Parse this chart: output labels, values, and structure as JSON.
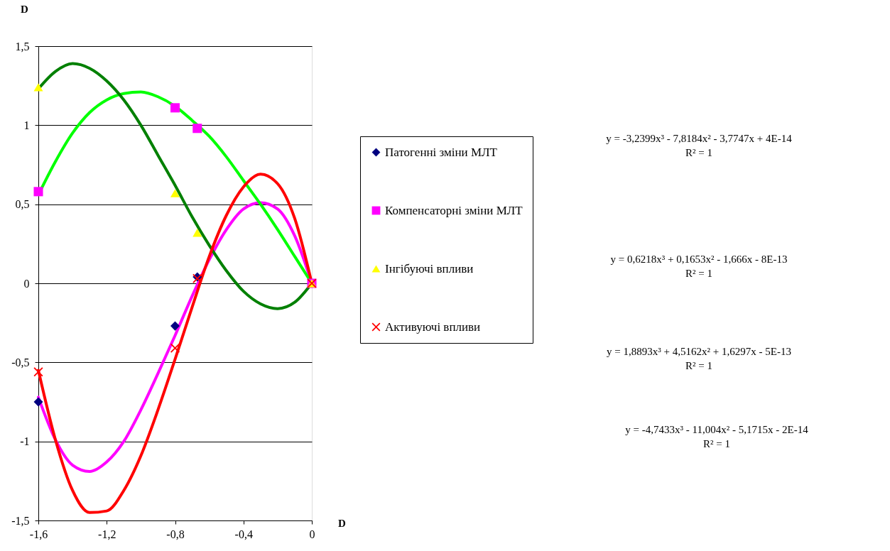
{
  "chart_data": {
    "type": "line",
    "xlabel": "D",
    "ylabel": "D",
    "xlim": [
      -1.6,
      0
    ],
    "xticks": [
      {
        "value": -1.6,
        "label": "-1,6"
      },
      {
        "value": -1.2,
        "label": "-1,2"
      },
      {
        "value": -0.8,
        "label": "-0,8"
      },
      {
        "value": -0.4,
        "label": "-0,4"
      },
      0
    ],
    "ylim": [
      -1.5,
      1.5
    ],
    "yticks": [
      {
        "value": -1.5,
        "label": "-1,5"
      },
      -1,
      {
        "value": -0.5,
        "label": "-0,5"
      },
      0,
      {
        "value": 0.5,
        "label": "0,5"
      },
      1,
      {
        "value": 1.5,
        "label": "1,5"
      }
    ],
    "grid": "y",
    "legend": "right",
    "series": [
      {
        "color": "#ff00ff",
        "x": [
          -1.6,
          -1.5,
          -1.4,
          -1.3,
          -1.2,
          -1.1,
          -1.0,
          -0.9,
          -0.8,
          -0.7,
          -0.6,
          -0.5,
          -0.4,
          -0.3,
          -0.2,
          -0.1,
          0
        ],
        "values": [
          -0.72,
          -0.99,
          -1.15,
          -1.19,
          -1.13,
          -1.0,
          -0.8,
          -0.57,
          -0.33,
          -0.08,
          0.15,
          0.34,
          0.47,
          0.51,
          0.47,
          0.3,
          0
        ]
      },
      {
        "color": "#00ff00",
        "x": [
          -1.6,
          -1.5,
          -1.4,
          -1.3,
          -1.2,
          -1.1,
          -1.0,
          -0.9,
          -0.8,
          -0.7,
          -0.6,
          -0.5,
          -0.4,
          -0.3,
          -0.2,
          -0.1,
          0
        ],
        "values": [
          0.56,
          0.77,
          0.95,
          1.08,
          1.16,
          1.2,
          1.21,
          1.18,
          1.12,
          1.03,
          0.93,
          0.8,
          0.65,
          0.5,
          0.34,
          0.17,
          0
        ]
      },
      {
        "color": "#008000",
        "x": [
          -1.6,
          -1.5,
          -1.4,
          -1.3,
          -1.2,
          -1.1,
          -1.0,
          -0.9,
          -0.8,
          -0.7,
          -0.6,
          -0.5,
          -0.4,
          -0.3,
          -0.2,
          -0.1,
          0
        ],
        "values": [
          1.23,
          1.34,
          1.39,
          1.36,
          1.28,
          1.16,
          1.0,
          0.81,
          0.62,
          0.42,
          0.24,
          0.08,
          -0.05,
          -0.13,
          -0.16,
          -0.12,
          0
        ]
      },
      {
        "color": "#ff0000",
        "x": [
          -1.6,
          -1.5,
          -1.4,
          -1.3,
          -1.2,
          -1.1,
          -1.0,
          -0.9,
          -0.8,
          -0.7,
          -0.6,
          -0.5,
          -0.4,
          -0.3,
          -0.2,
          -0.1,
          0
        ],
        "values": [
          -0.55,
          -0.99,
          -1.31,
          -1.45,
          -1.44,
          -1.31,
          -1.09,
          -0.8,
          -0.48,
          -0.15,
          0.17,
          0.43,
          0.61,
          0.69,
          0.63,
          0.41,
          0
        ]
      },
      {
        "type": "scatter",
        "name": "Патогенні зміни МЛТ",
        "color": "#000080",
        "marker": "diamond",
        "x": [
          -1.6,
          -0.8,
          -0.67,
          0
        ],
        "values": [
          -0.75,
          -0.27,
          0.04,
          0
        ]
      },
      {
        "type": "scatter",
        "name": "Компенсаторні зміни МЛТ",
        "color": "#ff00ff",
        "marker": "square",
        "x": [
          -1.6,
          -0.8,
          -0.67,
          0
        ],
        "values": [
          0.58,
          1.11,
          0.98,
          0
        ]
      },
      {
        "type": "scatter",
        "name": "Інгібуючі впливи",
        "color": "#ffff00",
        "marker": "triangle",
        "x": [
          -1.6,
          -0.8,
          -0.67,
          0
        ],
        "values": [
          1.24,
          0.57,
          0.32,
          0
        ]
      },
      {
        "type": "scatter",
        "name": "Активуючі впливи",
        "color": "#ff0000",
        "marker": "cross",
        "x": [
          -1.6,
          -0.8,
          -0.67,
          0
        ],
        "values": [
          -0.56,
          -0.41,
          0.03,
          0
        ]
      }
    ],
    "annotations": [
      "y = -3,2399x³ - 7,8184x² - 3,7747x + 4E-14",
      "R² = 1",
      "y = 0,6218x³ + 0,1653x² - 1,666x - 8E-13",
      "R² = 1",
      "y = 1,8893x³ + 4,5162x² + 1,6297x - 5E-13",
      "R² = 1",
      "y = -4,7433x³ - 11,004x² - 5,1715x - 2E-14",
      "R² = 1"
    ]
  }
}
